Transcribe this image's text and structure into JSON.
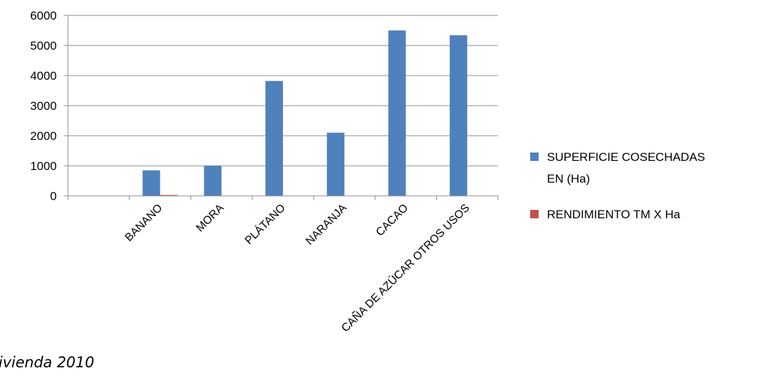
{
  "chart_data": {
    "type": "bar",
    "categories": [
      "",
      "BANANO",
      "MORA",
      "PLÁTANO",
      "NARANJA",
      "CACAO",
      "CAÑA DE AZÚCAR OTROS USOS"
    ],
    "series": [
      {
        "name": "SUPERFICIE COSECHADAS EN (Ha)",
        "name_lines": [
          "SUPERFICIE COSECHADAS",
          "EN (Ha)"
        ],
        "color": "#4f81bd",
        "values": [
          0,
          850,
          1000,
          3820,
          2100,
          5500,
          5340
        ]
      },
      {
        "name": "RENDIMIENTO TM X Ha",
        "name_lines": [
          "RENDIMIENTO TM X Ha"
        ],
        "color": "#c0504d",
        "values": [
          0,
          30,
          0,
          0,
          0,
          0,
          0
        ]
      }
    ],
    "ylim": [
      0,
      6000
    ],
    "yticks": [
      "0",
      "1000",
      "2000",
      "3000",
      "4000",
      "5000",
      "6000"
    ],
    "grid": true,
    "legend_position": "right"
  },
  "footnote": "ivienda 2010"
}
